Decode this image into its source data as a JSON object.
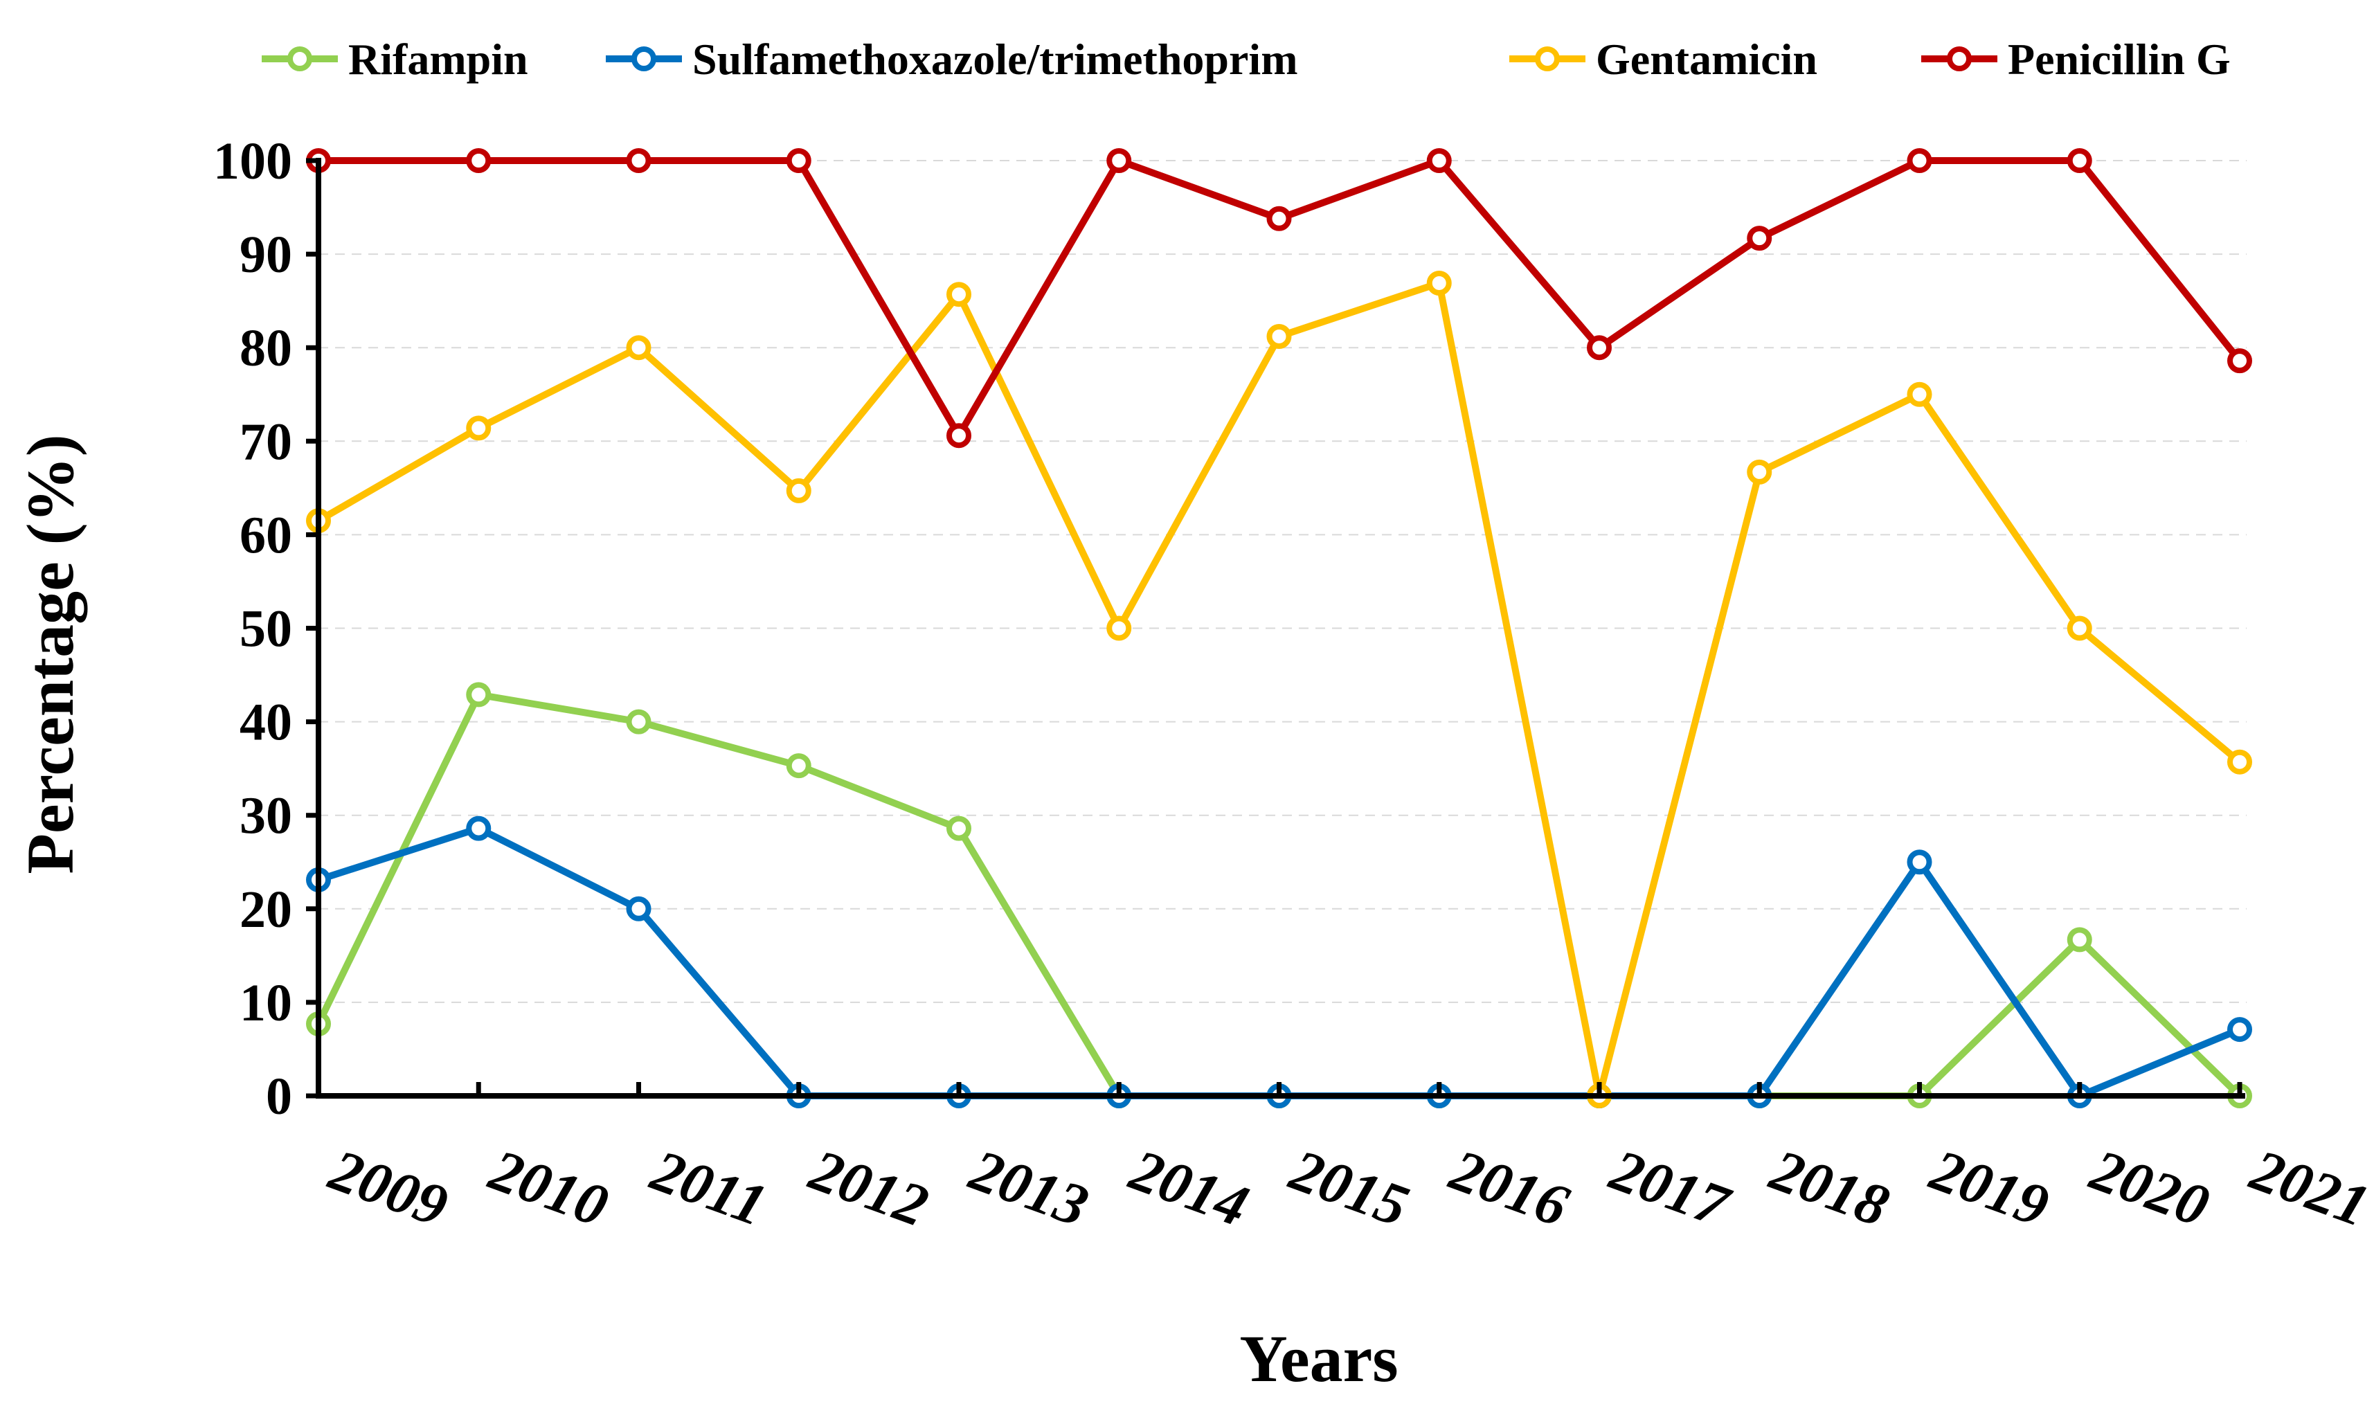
{
  "chart_data": {
    "type": "line",
    "xlabel": "Years",
    "ylabel": "Percentage (%)",
    "x": [
      "2009",
      "2010",
      "2011",
      "2012",
      "2013",
      "2014",
      "2015",
      "2016",
      "2017",
      "2018",
      "2019",
      "2020",
      "2021"
    ],
    "ylim": [
      0,
      100
    ],
    "yticks": [
      0,
      10,
      20,
      30,
      40,
      50,
      60,
      70,
      80,
      90,
      100
    ],
    "grid": "horizontal dashed",
    "legend_position": "top",
    "series": [
      {
        "name": "Rifampin",
        "color": "#92D050",
        "values": [
          7.7,
          42.9,
          40,
          35.3,
          28.6,
          0,
          0,
          0,
          0,
          0,
          0,
          16.7,
          0
        ]
      },
      {
        "name": "Sulfamethoxazole/trimethoprim",
        "color": "#0070C0",
        "values": [
          23.1,
          28.6,
          20,
          0,
          0,
          0,
          0,
          0,
          0,
          0,
          25,
          0,
          7.1
        ]
      },
      {
        "name": "Gentamicin",
        "color": "#FFC000",
        "values": [
          61.5,
          71.4,
          80,
          64.7,
          85.7,
          50,
          81.2,
          86.9,
          0,
          66.7,
          75,
          50,
          35.7
        ]
      },
      {
        "name": "Penicillin G",
        "color": "#C00000",
        "values": [
          100,
          100,
          100,
          100,
          70.6,
          100,
          93.8,
          100,
          80,
          91.7,
          100,
          100,
          78.6
        ]
      }
    ]
  }
}
